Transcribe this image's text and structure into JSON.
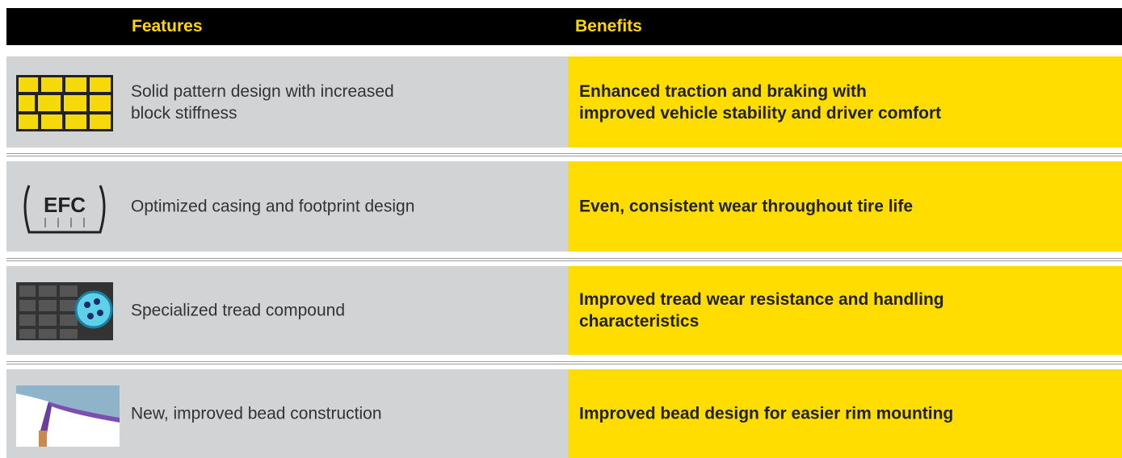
{
  "table": {
    "header": [
      "Features",
      "Benefits"
    ],
    "rows": [
      {
        "feature": [
          "Solid pattern design with increased",
          "block stiffness"
        ],
        "benefit": [
          "Enhanced traction and braking with",
          "improved vehicle stability and driver comfort"
        ]
      },
      {
        "icon_label": "EFC",
        "feature": [
          "Optimized casing and footprint design"
        ],
        "benefit": [
          "Even, consistent wear throughout tire life"
        ]
      },
      {
        "feature": [
          "Specialized tread compound"
        ],
        "benefit": [
          "Improved tread wear resistance and handling",
          "characteristics"
        ]
      },
      {
        "feature": [
          "New, improved bead construction"
        ],
        "benefit": [
          "Improved bead design for easier rim mounting"
        ]
      }
    ]
  }
}
